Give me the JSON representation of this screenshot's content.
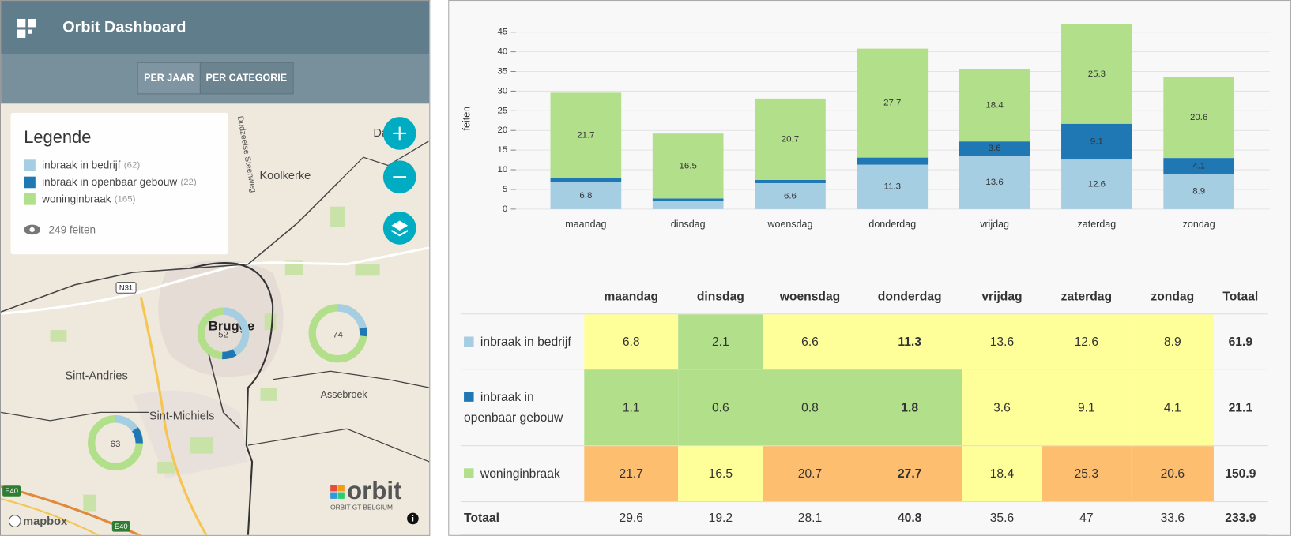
{
  "header": {
    "title": "Orbit Dashboard",
    "tabs": [
      "PER JAAR",
      "PER CATEGORIE"
    ]
  },
  "map": {
    "legend_title": "Legende",
    "legend_counts": [
      "(62)",
      "(22)",
      "(165)"
    ],
    "total": "249 feiten",
    "places": [
      "Dam",
      "Koolkerke",
      "Brugge",
      "Sint-Andries",
      "Sint-Michiels",
      "Assebroek",
      "Dudzeelse Steenweg"
    ],
    "road_labels": [
      "N31",
      "E40",
      "E40"
    ],
    "clusters": [
      "52",
      "74",
      "63"
    ],
    "attribution": "mapbox",
    "logo": "orbit",
    "logo_subtitle": "ORBIT GT BELGIUM"
  },
  "chart_data": {
    "type": "bar",
    "stacked": true,
    "y_label": "feiten",
    "categories": [
      "maandag",
      "dinsdag",
      "woensdag",
      "donderdag",
      "vrijdag",
      "zaterdag",
      "zondag"
    ],
    "series": [
      {
        "name": "inbraak in bedrijf",
        "color": "#a6cee3",
        "values": [
          6.8,
          2.1,
          6.6,
          11.3,
          13.6,
          12.6,
          8.9
        ]
      },
      {
        "name": "inbraak in openbaar gebouw",
        "color": "#1f78b4",
        "values": [
          1.1,
          0.6,
          0.8,
          1.8,
          3.6,
          9.1,
          4.1
        ]
      },
      {
        "name": "woninginbraak",
        "color": "#b2df8a",
        "values": [
          21.7,
          16.5,
          20.7,
          27.7,
          18.4,
          25.3,
          20.6
        ]
      }
    ],
    "ylim": [
      0,
      48
    ],
    "yticks": [
      0,
      5,
      10,
      15,
      20,
      25,
      30,
      35,
      40,
      45
    ],
    "grid": true
  },
  "table": {
    "columns": [
      "maandag",
      "dinsdag",
      "woensdag",
      "donderdag",
      "vrijdag",
      "zaterdag",
      "zondag",
      "Totaal"
    ],
    "rows": [
      {
        "label": "inbraak in bedrijf",
        "color": "#a6cee3",
        "values": [
          6.8,
          2.1,
          6.6,
          11.3,
          13.6,
          12.6,
          8.9
        ],
        "total": 61.9,
        "cell_colors": [
          "#ffff99",
          "#b2df8a",
          "#ffff99",
          "#ffff99",
          "#ffff99",
          "#ffff99",
          "#ffff99"
        ]
      },
      {
        "label": "inbraak in openbaar gebouw",
        "color": "#1f78b4",
        "values": [
          1.1,
          0.6,
          0.8,
          1.8,
          3.6,
          9.1,
          4.1
        ],
        "total": 21.1,
        "cell_colors": [
          "#b2df8a",
          "#b2df8a",
          "#b2df8a",
          "#b2df8a",
          "#ffff99",
          "#ffff99",
          "#ffff99"
        ]
      },
      {
        "label": "woninginbraak",
        "color": "#b2df8a",
        "values": [
          21.7,
          16.5,
          20.7,
          27.7,
          18.4,
          25.3,
          20.6
        ],
        "total": 150.9,
        "cell_colors": [
          "#fdbf6f",
          "#ffff99",
          "#fdbf6f",
          "#fdbf6f",
          "#ffff99",
          "#fdbf6f",
          "#fdbf6f"
        ]
      }
    ],
    "total_row": {
      "label": "Totaal",
      "values": [
        29.6,
        19.2,
        28.1,
        40.8,
        35.6,
        47,
        33.6
      ],
      "total": 233.9
    }
  }
}
